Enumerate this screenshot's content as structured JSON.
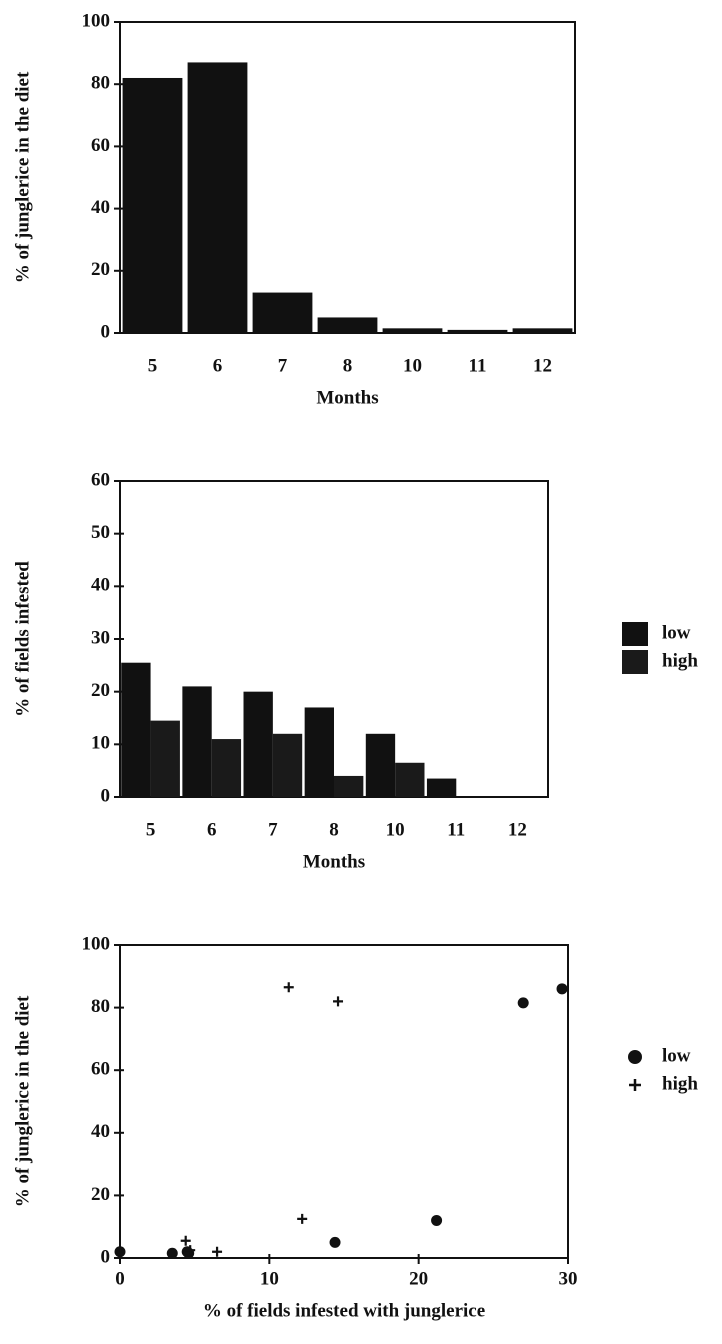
{
  "chart_data": [
    {
      "type": "bar",
      "ylabel": "% of junglerice in the diet",
      "xlabel": "Months",
      "categories": [
        "5",
        "6",
        "7",
        "8",
        "10",
        "11",
        "12"
      ],
      "values": [
        82,
        87,
        13,
        5,
        1.5,
        1,
        1.5
      ],
      "color": "#111111",
      "ylim": [
        0,
        100
      ],
      "yticks": [
        0,
        20,
        40,
        60,
        80,
        100
      ]
    },
    {
      "type": "grouped_bar",
      "ylabel": "% of fields infested",
      "xlabel": "Months",
      "categories": [
        "5",
        "6",
        "7",
        "8",
        "10",
        "11",
        "12"
      ],
      "series": [
        {
          "name": "low",
          "color": "#111111",
          "values": [
            25.5,
            21,
            20,
            17,
            12,
            3.5,
            0
          ]
        },
        {
          "name": "high",
          "color": "#1a1a1a",
          "values": [
            14.5,
            11,
            12,
            4,
            6.5,
            0,
            0
          ]
        }
      ],
      "ylim": [
        0,
        60
      ],
      "yticks": [
        0,
        10,
        20,
        30,
        40,
        50,
        60
      ]
    },
    {
      "type": "scatter",
      "ylabel": "% of junglerice in the diet",
      "xlabel": "% of fields infested with junglerice",
      "series": [
        {
          "name": "low",
          "color": "#111111",
          "marker": "circle",
          "x": [
            0,
            3.5,
            4.5,
            4.6,
            14.4,
            21.2,
            27,
            29.6
          ],
          "values": [
            2,
            1.5,
            2,
            1.5,
            5,
            12,
            81.5,
            86
          ]
        },
        {
          "name": "high",
          "color": "#111111",
          "marker": "plus",
          "x": [
            4.4,
            4.7,
            6.5,
            11.3,
            12.2,
            14.6
          ],
          "values": [
            5.5,
            2.5,
            2,
            86.5,
            12.5,
            82
          ]
        }
      ],
      "xlim": [
        0,
        30
      ],
      "xticks": [
        0,
        10,
        20,
        30
      ],
      "ylim": [
        0,
        100
      ],
      "yticks": [
        0,
        20,
        40,
        60,
        80,
        100
      ]
    }
  ]
}
